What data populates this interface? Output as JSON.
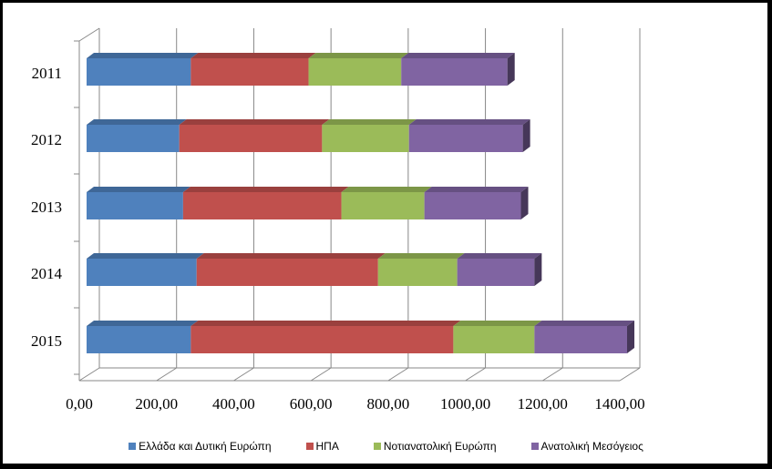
{
  "chart_data": {
    "type": "bar",
    "orientation": "horizontal",
    "stacked": true,
    "three_d": true,
    "categories": [
      "2011",
      "2012",
      "2013",
      "2014",
      "2015"
    ],
    "series": [
      {
        "name": "Ελλάδα και Δυτική Ευρώπη",
        "color": "#4F81BD",
        "values": [
          270,
          240,
          250,
          285,
          270
        ]
      },
      {
        "name": "ΗΠΑ",
        "color": "#C0504D",
        "values": [
          305,
          370,
          410,
          470,
          680
        ]
      },
      {
        "name": "Νοτιανατολική Ευρώπη",
        "color": "#9BBB59",
        "values": [
          240,
          225,
          215,
          205,
          210
        ]
      },
      {
        "name": "Ανατολική Μεσόγειος",
        "color": "#8064A2",
        "values": [
          275,
          295,
          250,
          200,
          240
        ]
      }
    ],
    "x_ticks": [
      "0,00",
      "200,00",
      "400,00",
      "600,00",
      "800,00",
      "1000,00",
      "1200,00",
      "1400,00"
    ],
    "xlim": [
      0,
      1400
    ],
    "grid": true,
    "legend_position": "bottom"
  }
}
